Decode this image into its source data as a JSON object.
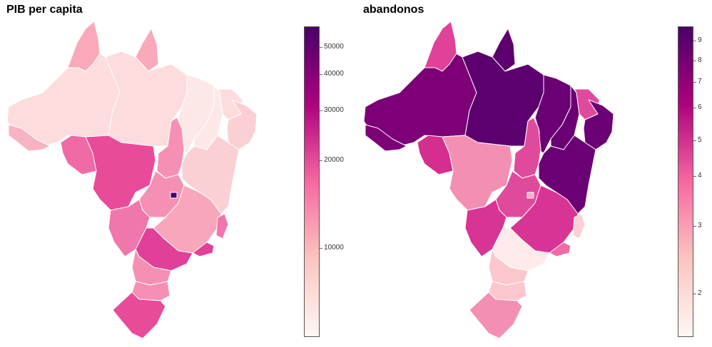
{
  "left_panel": {
    "title": "PIB per capita",
    "legend": {
      "ticks": [
        "50000",
        "40000",
        "30000",
        "20000",
        "10000"
      ],
      "colors": [
        "#fff7f3",
        "#fcc5c0",
        "#f768a1",
        "#ae017e",
        "#49006a"
      ]
    },
    "regions": {
      "AM": "#fcdcdc",
      "PA": "#fcdcdc",
      "RR": "#f9a9b9",
      "AP": "#f9a9b9",
      "AC": "#f8b3c1",
      "RO": "#f06aa6",
      "MT": "#e84b9a",
      "TO": "#f590b4",
      "MA": "#fde8e8",
      "PI": "#fde8e8",
      "CE": "#fcdcdc",
      "NE_small": "#fad0d4",
      "BA": "#fad0d4",
      "GO": "#f590b4",
      "DF": "#49006a",
      "MG": "#f8a6bb",
      "MS": "#ef77ab",
      "SP": "#e04098",
      "RJ": "#e04098",
      "ES": "#ef77ab",
      "PR": "#f590b4",
      "SC": "#f590b4",
      "RS": "#e84b9a"
    }
  },
  "right_panel": {
    "title": "abandonos",
    "legend": {
      "ticks": [
        "9",
        "8",
        "7",
        "6",
        "5",
        "4",
        "3",
        "2"
      ],
      "colors": [
        "#fff7f3",
        "#fcc5c0",
        "#f768a1",
        "#ae017e",
        "#49006a"
      ]
    },
    "regions": {
      "AM": "#7d0077",
      "PA": "#5c006f",
      "RR": "#e0429a",
      "AP": "#5c006f",
      "AC": "#7d0077",
      "RO": "#d42e8f",
      "MT": "#f48fb4",
      "TO": "#e04a9c",
      "MA": "#6a0073",
      "PI": "#6a0073",
      "CE": "#e04a9c",
      "NE_small": "#6a0073",
      "BA": "#6a0073",
      "GO": "#e04a9c",
      "DF": "#f8b0c2",
      "MG": "#d83495",
      "MS": "#d83495",
      "SP": "#fdeaea",
      "RJ": "#f06aa6",
      "ES": "#fad0d4",
      "PR": "#fbc6cc",
      "SC": "#fbc6cc",
      "RS": "#f48fb4"
    }
  }
}
